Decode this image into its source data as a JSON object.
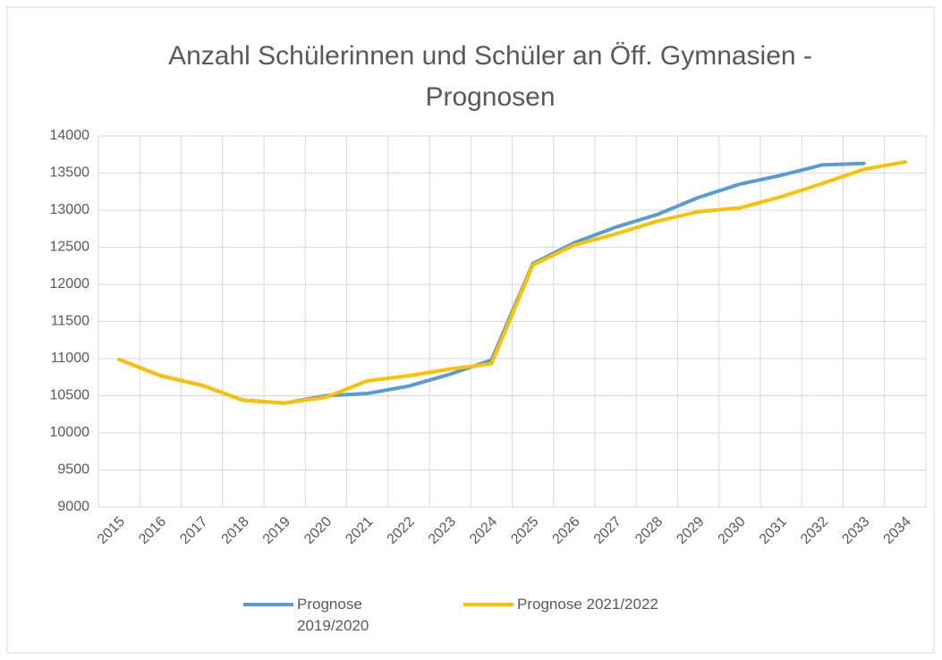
{
  "chart_data": {
    "type": "line",
    "title": "Anzahl Schülerinnen und Schüler an Öff. Gymnasien - Prognosen",
    "categories": [
      "2015",
      "2016",
      "2017",
      "2018",
      "2019",
      "2020",
      "2021",
      "2022",
      "2023",
      "2024",
      "2025",
      "2026",
      "2027",
      "2028",
      "2029",
      "2030",
      "2031",
      "2032",
      "2033",
      "2034"
    ],
    "series": [
      {
        "name": "Prognose 2019/2020",
        "color": "#5b9bd5",
        "values": [
          10990,
          10770,
          10640,
          10440,
          10400,
          10500,
          10530,
          10630,
          10790,
          10980,
          12280,
          12560,
          12770,
          12940,
          13170,
          13350,
          13470,
          13610,
          13630,
          null
        ]
      },
      {
        "name": "Prognose 2021/2022",
        "color": "#ffc000",
        "values": [
          10990,
          10770,
          10640,
          10440,
          10400,
          10480,
          10700,
          10770,
          10860,
          10930,
          12260,
          12530,
          12680,
          12850,
          12980,
          13030,
          13180,
          13360,
          13550,
          13650
        ]
      }
    ],
    "ylim": [
      9000,
      14000
    ],
    "yticks": [
      9000,
      9500,
      10000,
      10500,
      11000,
      11500,
      12000,
      12500,
      13000,
      13500,
      14000
    ],
    "grid": true,
    "legend": "bottom"
  }
}
